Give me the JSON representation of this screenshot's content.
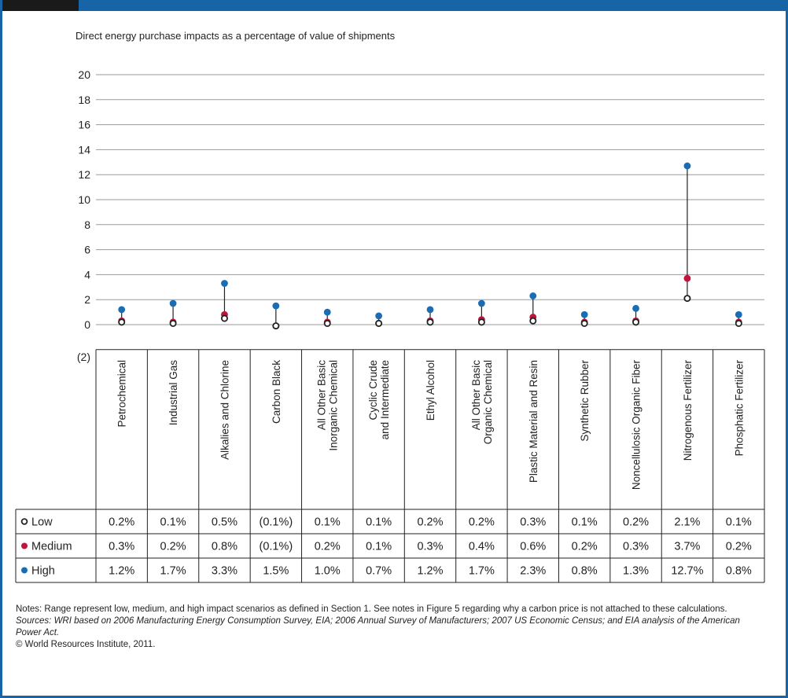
{
  "chart_data": {
    "type": "dot-range",
    "subtitle": "Direct energy purchase impacts as a percentage of value of shipments",
    "yticks": [
      "20",
      "18",
      "16",
      "14",
      "12",
      "10",
      "8",
      "6",
      "4",
      "2",
      "0",
      "(2)"
    ],
    "ylim": [
      -2,
      20
    ],
    "categories": [
      [
        "Petrochemical"
      ],
      [
        "Industrial Gas"
      ],
      [
        "Alkalies and Chlorine"
      ],
      [
        "Carbon Black"
      ],
      [
        "All Other Basic",
        "Inorganic Chemical"
      ],
      [
        "Cyclic Crude",
        "and Intermediate"
      ],
      [
        "Ethyl Alcohol"
      ],
      [
        "All Other Basic",
        "Organic Chemical"
      ],
      [
        "Plastic Material and Resin"
      ],
      [
        "Synthetic Rubber"
      ],
      [
        "Noncellulosic Organic Fiber"
      ],
      [
        "Nitrogenous Fertilizer"
      ],
      [
        "Phosphatic Fertilizer"
      ]
    ],
    "series": [
      {
        "name": "Low",
        "color": "#222222",
        "marker": "hollow",
        "values": [
          0.2,
          0.1,
          0.5,
          -0.1,
          0.1,
          0.1,
          0.2,
          0.2,
          0.3,
          0.1,
          0.2,
          2.1,
          0.1
        ],
        "labels": [
          "0.2%",
          "0.1%",
          "0.5%",
          "(0.1%)",
          "0.1%",
          "0.1%",
          "0.2%",
          "0.2%",
          "0.3%",
          "0.1%",
          "0.2%",
          "2.1%",
          "0.1%"
        ]
      },
      {
        "name": "Medium",
        "color": "#c0143c",
        "marker": "filled",
        "values": [
          0.3,
          0.2,
          0.8,
          -0.1,
          0.2,
          0.1,
          0.3,
          0.4,
          0.6,
          0.2,
          0.3,
          3.7,
          0.2
        ],
        "labels": [
          "0.3%",
          "0.2%",
          "0.8%",
          "(0.1%)",
          "0.2%",
          "0.1%",
          "0.3%",
          "0.4%",
          "0.6%",
          "0.2%",
          "0.3%",
          "3.7%",
          "0.2%"
        ]
      },
      {
        "name": "High",
        "color": "#1a6db5",
        "marker": "filled",
        "values": [
          1.2,
          1.7,
          3.3,
          1.5,
          1.0,
          0.7,
          1.2,
          1.7,
          2.3,
          0.8,
          1.3,
          12.7,
          0.8
        ],
        "labels": [
          "1.2%",
          "1.7%",
          "3.3%",
          "1.5%",
          "1.0%",
          "0.7%",
          "1.2%",
          "1.7%",
          "2.3%",
          "0.8%",
          "1.3%",
          "12.7%",
          "0.8%"
        ]
      }
    ],
    "grid": true,
    "legend": "in-table-left"
  },
  "notes": {
    "line1": "Notes: Range represent low, medium, and high impact scenarios as defined in Section 1.  See notes in Figure 5 regarding why a carbon price is not attached to these calculations.",
    "sources": "Sources: WRI based on 2006 Manufacturing Energy Consumption Survey, EIA; 2006 Annual Survey of Manufacturers; 2007 US Economic Census; and EIA analysis of the American Power Act.",
    "copyright": "© World Resources Institute, 2011."
  },
  "colors": {
    "frame": "#1765a6",
    "grid": "#9a9a9a"
  }
}
